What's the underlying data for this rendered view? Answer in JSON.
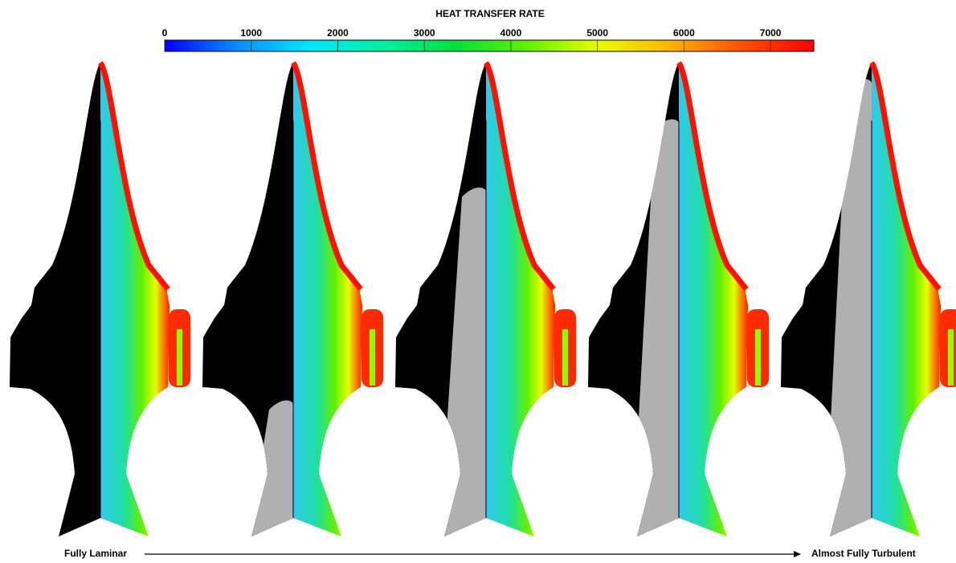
{
  "colorbar": {
    "title": "HEAT TRANSFER RATE",
    "range": [
      0,
      7500
    ],
    "ticks": [
      0,
      1000,
      2000,
      3000,
      4000,
      5000,
      6000,
      7000
    ],
    "colormap": [
      "#0000ff",
      "#0a8cff",
      "#00e6ff",
      "#00f0a0",
      "#00e040",
      "#60f000",
      "#e6ff00",
      "#ffb400",
      "#ff5000",
      "#ff0000"
    ]
  },
  "progression": {
    "start": "Fully Laminar",
    "end": "Almost Fully Turbulent"
  }
}
